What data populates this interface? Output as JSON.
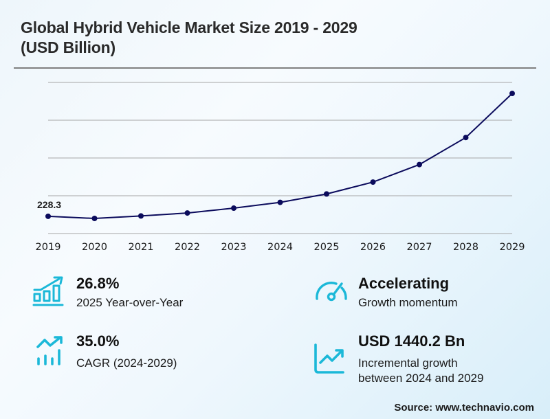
{
  "header": {
    "title_line1": "Global Hybrid Vehicle Market Size 2019 - 2029",
    "title_line2": "(USD Billion)"
  },
  "chart_data": {
    "type": "line",
    "title": "Global Hybrid Vehicle Market Size 2019 - 2029 (USD Billion)",
    "xlabel": "",
    "ylabel": "",
    "categories": [
      "2019",
      "2020",
      "2021",
      "2022",
      "2023",
      "2024",
      "2025",
      "2026",
      "2027",
      "2028",
      "2029"
    ],
    "series": [
      {
        "name": "Market Size (USD Billion)",
        "values": [
          228.3,
          200,
          233,
          272,
          336,
          413,
          524,
          681,
          913,
          1271,
          1854
        ],
        "color": "#0b0b5c"
      }
    ],
    "data_labels": [
      {
        "index": 0,
        "text": "228.3"
      }
    ],
    "ylim": [
      0,
      2000
    ],
    "y_gridlines": [
      0,
      500,
      1000,
      1500,
      2000
    ],
    "grid": true,
    "y_tick_labels_visible": false,
    "legend": "none"
  },
  "stats": [
    {
      "icon": "bar-chart-growth-icon",
      "value": "26.8%",
      "desc_lines": [
        "2025 Year-over-Year"
      ]
    },
    {
      "icon": "speedometer-icon",
      "value": "Accelerating",
      "desc_lines": [
        "Growth momentum"
      ]
    },
    {
      "icon": "trend-up-bars-icon",
      "value": "35.0%",
      "desc_lines": [
        "CAGR (2024-2029)"
      ]
    },
    {
      "icon": "line-chart-up-icon",
      "value": "USD 1440.2 Bn",
      "desc_lines": [
        "Incremental growth",
        "between 2024 and 2029"
      ]
    }
  ],
  "colors": {
    "accent": "#1bb8d8",
    "line": "#0b0b5c",
    "grid": "#a6a6a6"
  },
  "footer": {
    "source": "Source: www.technavio.com"
  }
}
